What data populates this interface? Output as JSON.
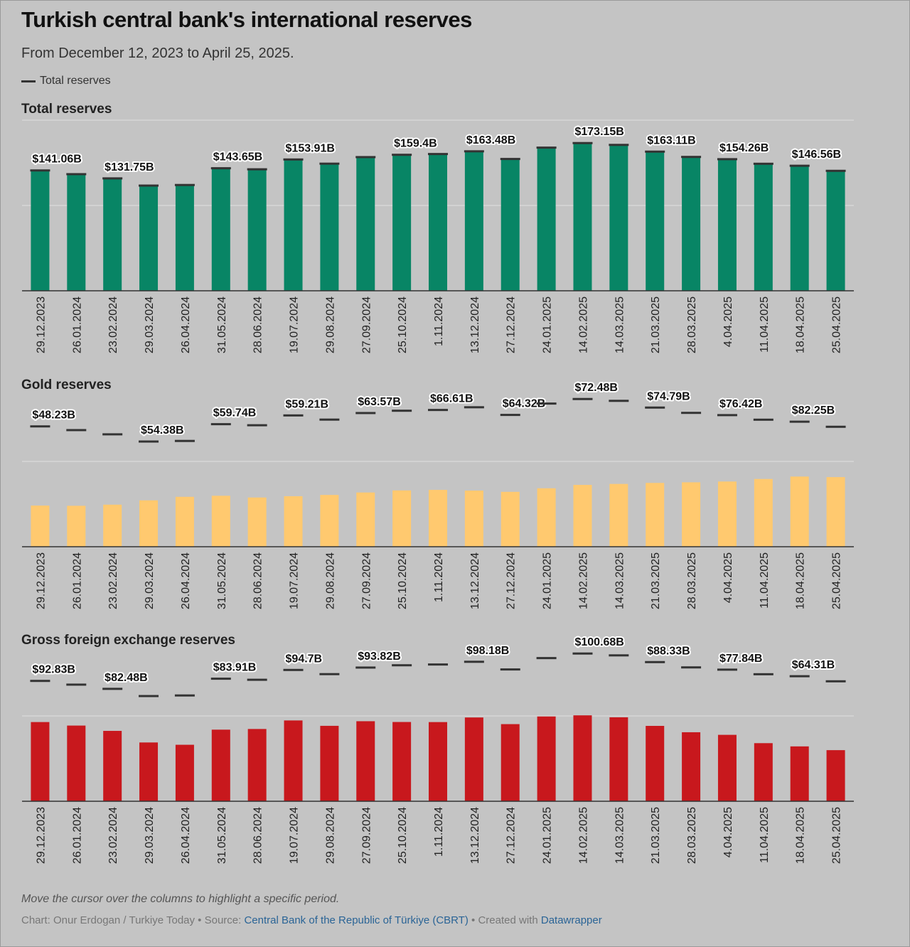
{
  "title": "Turkish central bank's international reserves",
  "subtitle": "From December 12, 2023 to April 25, 2025.",
  "legend": {
    "label": "Total reserves"
  },
  "note": "Move the cursor over the columns to highlight a specific period.",
  "footer": {
    "prefix": "Chart: Onur Erdogan / Turkiye Today • Source: ",
    "source_link": "Central Bank of the Republic of Türkiye (CBRT)",
    "middle": " • Created with ",
    "tool_link": "Datawrapper"
  },
  "colors": {
    "total": "#088565",
    "gold": "#ffc96f",
    "fx": "#c8181d",
    "marker": "#333333",
    "background": "#c4c4c4",
    "gridline": "#e0e0e0"
  },
  "chart_data": [
    {
      "type": "bar",
      "id": "total",
      "title": "Total reserves",
      "unit": "billion USD",
      "ylim": [
        0,
        200
      ],
      "gridlines": [
        100,
        200
      ],
      "categories": [
        "29.12.2023",
        "26.01.2024",
        "23.02.2024",
        "29.03.2024",
        "26.04.2024",
        "31.05.2024",
        "28.06.2024",
        "19.07.2024",
        "29.08.2024",
        "27.09.2024",
        "25.10.2024",
        "1.11.2024",
        "13.12.2024",
        "27.12.2024",
        "24.01.2025",
        "14.02.2025",
        "14.03.2025",
        "21.03.2025",
        "28.03.2025",
        "4.04.2025",
        "11.04.2025",
        "18.04.2025",
        "25.04.2025"
      ],
      "values": [
        141.06,
        136.7,
        131.75,
        123.3,
        124.0,
        143.65,
        142.4,
        153.91,
        149.0,
        156.7,
        159.4,
        160.3,
        163.48,
        154.5,
        167.8,
        173.15,
        171.0,
        163.11,
        156.9,
        154.26,
        148.9,
        146.56,
        140.6
      ],
      "labels": [
        "$141.06B",
        "",
        "$131.75B",
        "",
        "",
        "$143.65B",
        "",
        "$153.91B",
        "",
        "",
        "$159.4B",
        "",
        "$163.48B",
        "",
        "",
        "$173.15B",
        "",
        "$163.11B",
        "",
        "$154.26B",
        "",
        "$146.56B",
        ""
      ],
      "total_markers": [
        141.06,
        136.7,
        131.75,
        123.3,
        124.0,
        143.65,
        142.4,
        153.91,
        149.0,
        156.7,
        159.4,
        160.3,
        163.48,
        154.5,
        167.8,
        173.15,
        171.0,
        163.11,
        156.9,
        154.26,
        148.9,
        146.56,
        140.6
      ]
    },
    {
      "type": "bar",
      "id": "gold",
      "title": "Gold reserves",
      "unit": "billion USD",
      "ylim": [
        0,
        200
      ],
      "gridlines": [
        100
      ],
      "categories": [
        "29.12.2023",
        "26.01.2024",
        "23.02.2024",
        "29.03.2024",
        "26.04.2024",
        "31.05.2024",
        "28.06.2024",
        "19.07.2024",
        "29.08.2024",
        "27.09.2024",
        "25.10.2024",
        "1.11.2024",
        "13.12.2024",
        "27.12.2024",
        "24.01.2025",
        "14.02.2025",
        "14.03.2025",
        "21.03.2025",
        "28.03.2025",
        "4.04.2025",
        "11.04.2025",
        "18.04.2025",
        "25.04.2025"
      ],
      "values": [
        48.23,
        48.0,
        49.3,
        54.38,
        58.5,
        59.74,
        57.7,
        59.21,
        60.7,
        63.57,
        66.0,
        66.61,
        65.8,
        64.32,
        68.5,
        72.48,
        73.6,
        74.79,
        75.5,
        76.42,
        79.4,
        82.25,
        81.6
      ],
      "labels": [
        "$48.23B",
        "",
        "",
        "$54.38B",
        "",
        "$59.74B",
        "",
        "$59.21B",
        "",
        "$63.57B",
        "",
        "$66.61B",
        "",
        "$64.32B",
        "",
        "$72.48B",
        "",
        "$74.79B",
        "",
        "$76.42B",
        "",
        "$82.25B",
        ""
      ],
      "total_markers": [
        141.06,
        136.7,
        131.75,
        123.3,
        124.0,
        143.65,
        142.4,
        153.91,
        149.0,
        156.7,
        159.4,
        160.3,
        163.48,
        154.5,
        167.8,
        173.15,
        171.0,
        163.11,
        156.9,
        154.26,
        148.9,
        146.56,
        140.6
      ]
    },
    {
      "type": "bar",
      "id": "fx",
      "title": "Gross foreign exchange reserves",
      "unit": "billion USD",
      "ylim": [
        0,
        200
      ],
      "gridlines": [
        100
      ],
      "categories": [
        "29.12.2023",
        "26.01.2024",
        "23.02.2024",
        "29.03.2024",
        "26.04.2024",
        "31.05.2024",
        "28.06.2024",
        "19.07.2024",
        "29.08.2024",
        "27.09.2024",
        "25.10.2024",
        "1.11.2024",
        "13.12.2024",
        "27.12.2024",
        "24.01.2025",
        "14.02.2025",
        "14.03.2025",
        "21.03.2025",
        "28.03.2025",
        "4.04.2025",
        "11.04.2025",
        "18.04.2025",
        "25.04.2025"
      ],
      "values": [
        92.83,
        88.7,
        82.48,
        68.9,
        66.2,
        83.91,
        84.7,
        94.7,
        88.4,
        93.82,
        92.9,
        92.8,
        98.18,
        90.4,
        99.4,
        100.68,
        98.4,
        88.33,
        80.9,
        77.84,
        68.1,
        64.31,
        59.9
      ],
      "labels": [
        "$92.83B",
        "",
        "$82.48B",
        "",
        "",
        "$83.91B",
        "",
        "$94.7B",
        "",
        "$93.82B",
        "",
        "",
        "$98.18B",
        "",
        "",
        "$100.68B",
        "",
        "$88.33B",
        "",
        "$77.84B",
        "",
        "$64.31B",
        ""
      ],
      "total_markers": [
        141.06,
        136.7,
        131.75,
        123.3,
        124.0,
        143.65,
        142.4,
        153.91,
        149.0,
        156.7,
        159.4,
        160.3,
        163.48,
        154.5,
        167.8,
        173.15,
        171.0,
        163.11,
        156.9,
        154.26,
        148.9,
        146.56,
        140.6
      ]
    }
  ]
}
